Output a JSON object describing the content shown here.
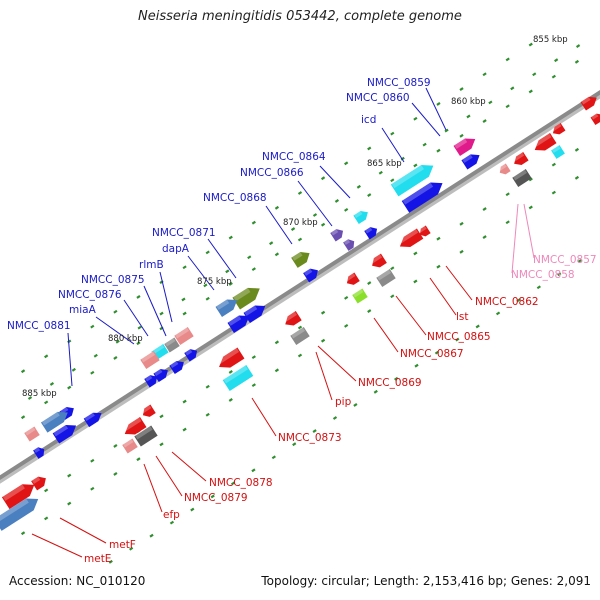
{
  "title": "Neisseria meningitidis 053442, complete genome",
  "footer": {
    "accession": "Accession: NC_010120",
    "topology": "Topology: circular; Length: 2,153,416 bp; Genes: 2,091"
  },
  "colors": {
    "backbone": "#8a8a8a",
    "ticks": "#2f8f2f",
    "label_blue": "#1a1ac8",
    "label_red": "#d41010",
    "label_pink": "#ee88bb",
    "red": "#e01414",
    "blue": "#1414e6",
    "steelblue": "#4a7fc0",
    "cyan": "#22ddee",
    "olive": "#6b8a1e",
    "gray": "#8a8a8a",
    "pink": "#e88a8a",
    "magenta": "#e01a8a",
    "purple": "#6a4fb0",
    "lightgreen": "#8adf2a",
    "darkgray": "#555555"
  },
  "scale_labels": [
    {
      "text": "855 kbp"
    },
    {
      "text": "860 kbp"
    },
    {
      "text": "865 kbp"
    },
    {
      "text": "870 kbp"
    },
    {
      "text": "875 kbp"
    },
    {
      "text": "880 kbp"
    },
    {
      "text": "885 kbp"
    }
  ],
  "gene_labels": [
    {
      "text": "NMCC_0859",
      "color": "label_blue"
    },
    {
      "text": "NMCC_0860",
      "color": "label_blue"
    },
    {
      "text": "icd",
      "color": "label_blue"
    },
    {
      "text": "NMCC_0864",
      "color": "label_blue"
    },
    {
      "text": "NMCC_0866",
      "color": "label_blue"
    },
    {
      "text": "NMCC_0868",
      "color": "label_blue"
    },
    {
      "text": "NMCC_0871",
      "color": "label_blue"
    },
    {
      "text": "dapA",
      "color": "label_blue"
    },
    {
      "text": "rlmB",
      "color": "label_blue"
    },
    {
      "text": "NMCC_0875",
      "color": "label_blue"
    },
    {
      "text": "NMCC_0876",
      "color": "label_blue"
    },
    {
      "text": "miaA",
      "color": "label_blue"
    },
    {
      "text": "NMCC_0881",
      "color": "label_blue"
    },
    {
      "text": "NMCC_0857",
      "color": "label_pink"
    },
    {
      "text": "NMCC_0858",
      "color": "label_pink"
    },
    {
      "text": "NMCC_0862",
      "color": "label_red"
    },
    {
      "text": "lst",
      "color": "label_red"
    },
    {
      "text": "NMCC_0865",
      "color": "label_red"
    },
    {
      "text": "NMCC_0867",
      "color": "label_red"
    },
    {
      "text": "NMCC_0869",
      "color": "label_red"
    },
    {
      "text": "pip",
      "color": "label_red"
    },
    {
      "text": "NMCC_0873",
      "color": "label_red"
    },
    {
      "text": "NMCC_0878",
      "color": "label_red"
    },
    {
      "text": "NMCC_0879",
      "color": "label_red"
    },
    {
      "text": "efp",
      "color": "label_red"
    },
    {
      "text": "metF",
      "color": "label_red"
    },
    {
      "text": "metE",
      "color": "label_red"
    }
  ]
}
